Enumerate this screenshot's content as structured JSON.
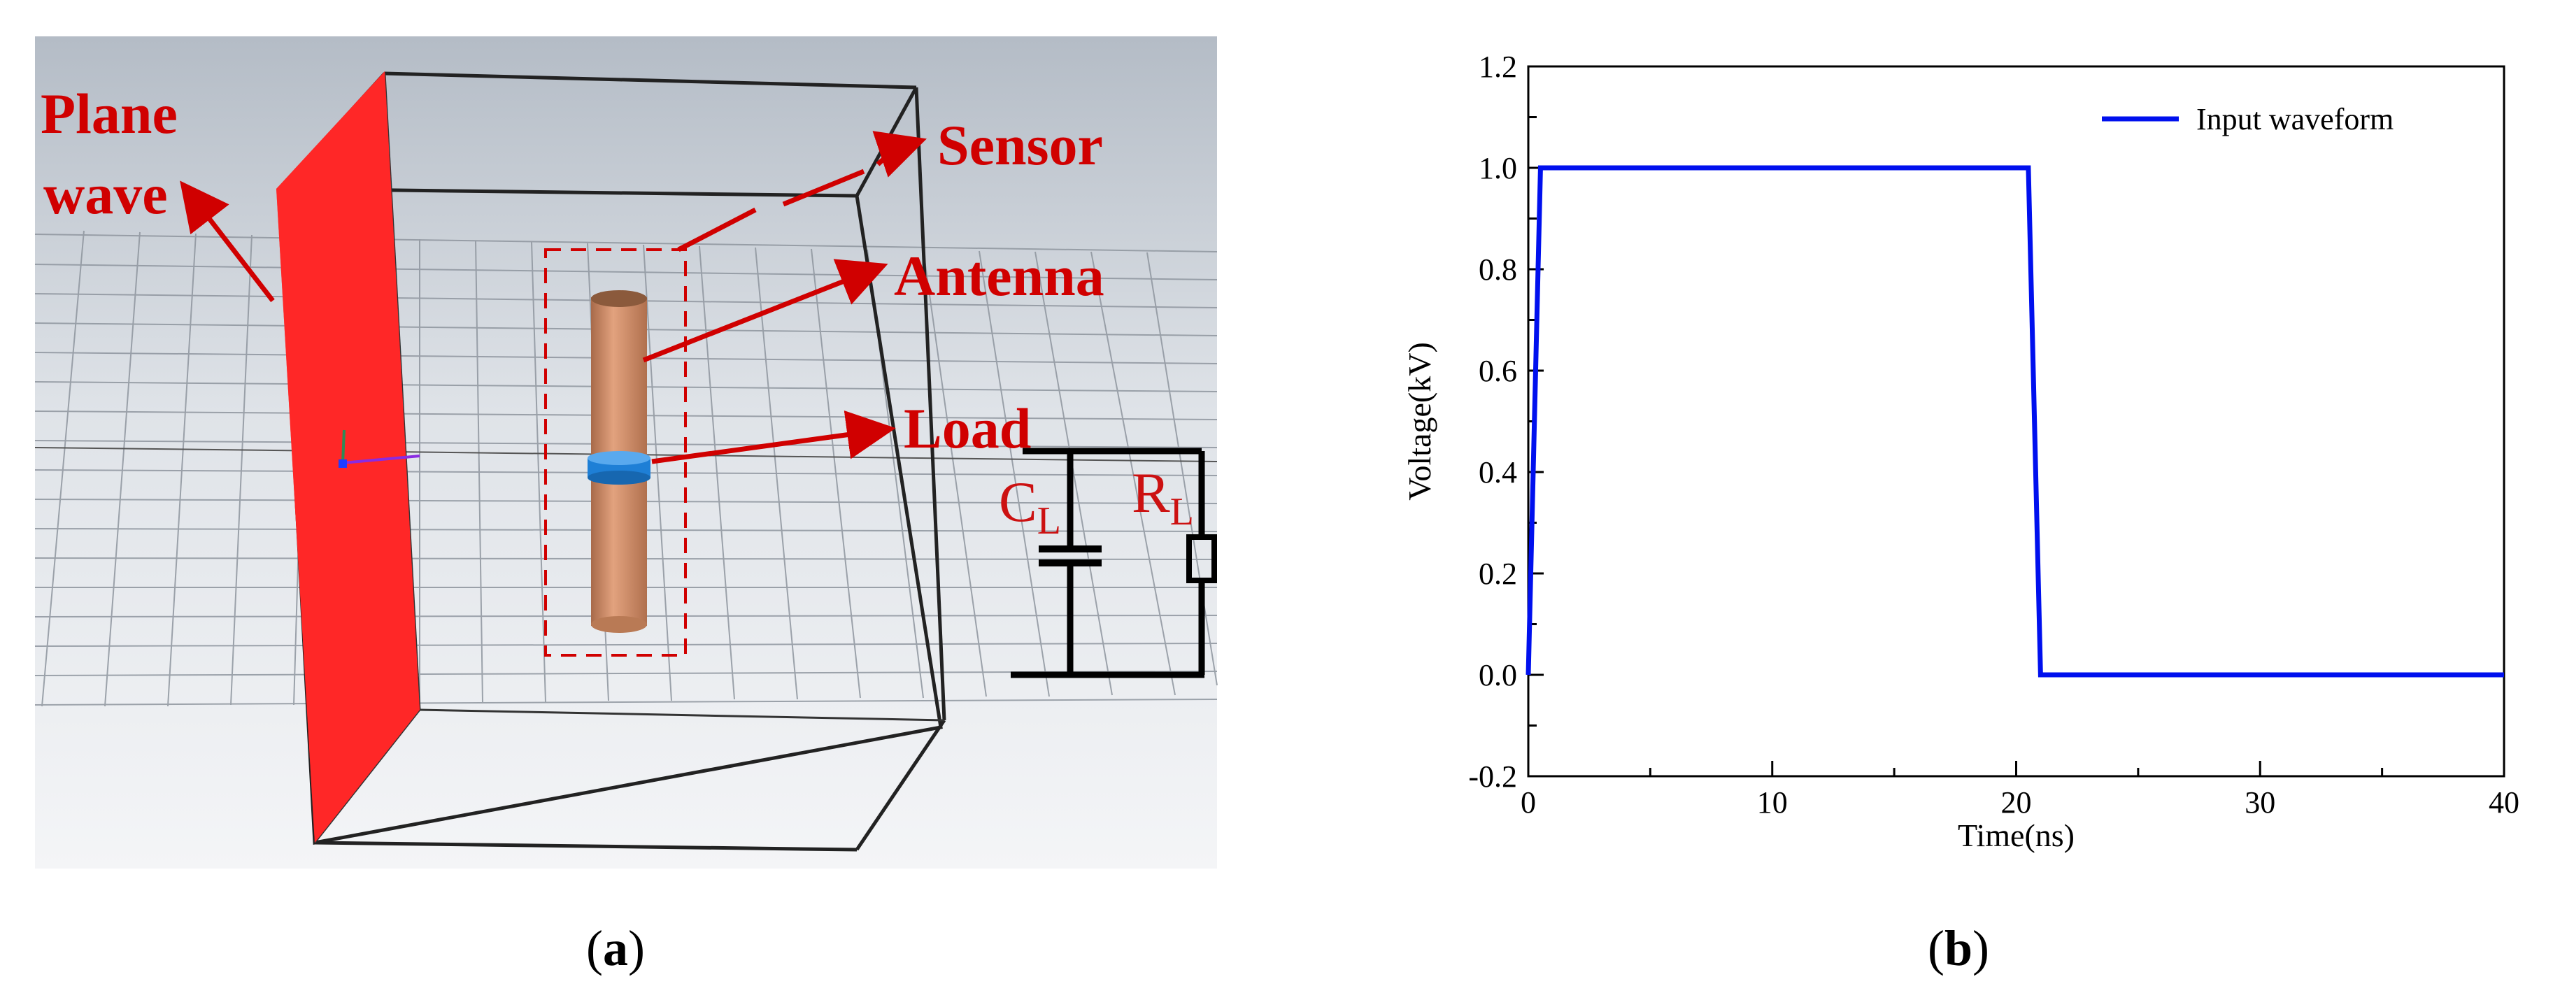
{
  "panel_a": {
    "labels": {
      "plane_wave_line1": "Plane",
      "plane_wave_line2": "wave",
      "sensor": "Sensor",
      "antenna": "Antenna",
      "load": "Load"
    },
    "circuit": {
      "capacitor_symbol": "C",
      "capacitor_sub": "L",
      "resistor_symbol": "R",
      "resistor_sub": "L"
    },
    "caption_letter": "a"
  },
  "panel_b": {
    "caption_letter": "b"
  },
  "colors": {
    "plane_wave": "#ff1a1a",
    "annotation": "#d00000",
    "series": "#0010ee",
    "antenna": "#d08a64",
    "load_ring": "#1e7fd6"
  },
  "chart_data": {
    "type": "line",
    "xlabel": "Time(ns)",
    "ylabel": "Voltage(kV)",
    "xlim": [
      0,
      40
    ],
    "ylim": [
      -0.2,
      1.2
    ],
    "xticks": [
      "0",
      "10",
      "20",
      "30",
      "40"
    ],
    "yticks": [
      "-0.2",
      "0.0",
      "0.2",
      "0.4",
      "0.6",
      "0.8",
      "1.0",
      "1.2"
    ],
    "legend_position": "top-right",
    "grid": false,
    "series": [
      {
        "name": "Input waveform",
        "x": [
          0,
          0.5,
          20.5,
          21.0,
          40
        ],
        "y": [
          0.0,
          1.0,
          1.0,
          0.0,
          0.0
        ]
      }
    ]
  }
}
